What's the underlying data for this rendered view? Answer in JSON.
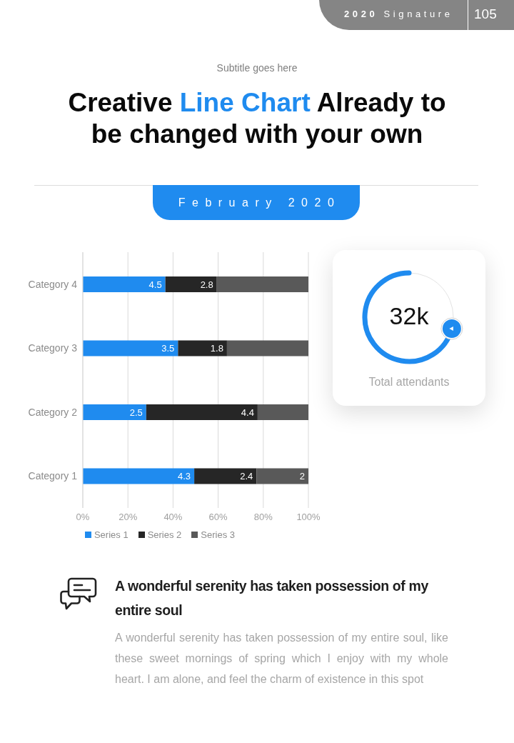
{
  "chart_data": {
    "type": "bar",
    "orientation": "horizontal",
    "stacked": true,
    "title": "Creative Line Chart Already to be changed with your own",
    "subtitle": "Subtitle goes here",
    "categories": [
      "Category 4",
      "Category 3",
      "Category 2",
      "Category 1"
    ],
    "series": [
      {
        "name": "Series 1",
        "color": "#1f8bef",
        "values": [
          36.6,
          42.2,
          28.1,
          49.4
        ]
      },
      {
        "name": "Series 2",
        "color": "#262626",
        "values": [
          22.8,
          21.7,
          49.4,
          27.6
        ]
      },
      {
        "name": "Series 3",
        "color": "#595959",
        "values": [
          40.6,
          36.1,
          22.5,
          23.0
        ]
      }
    ],
    "xlim": [
      0,
      100
    ],
    "xticks": [
      {
        "value": 0,
        "label": "0%"
      },
      {
        "value": 20,
        "label": "20%"
      },
      {
        "value": 40,
        "label": "40%"
      },
      {
        "value": 60,
        "label": "60%"
      },
      {
        "value": 80,
        "label": "80%"
      },
      {
        "value": 100,
        "label": "100%"
      }
    ],
    "grid": "x",
    "legend": "bottom",
    "annotations": [
      "2020 Signature",
      "105",
      "February 2020",
      "32k",
      "Total attendants",
      "A wonderful serenity has taken possession of my entire soul",
      "A wonderful serenity has taken possession of my entire soul, like these sweet mornings of spring which I enjoy with my whole heart. I am alone, and feel the charm of existence in this spot",
      {
        "text": "4.5",
        "x": 36.6,
        "y": "Category 4"
      },
      {
        "text": "2.8",
        "x": 59.4,
        "y": "Category 4"
      },
      {
        "text": "3.5",
        "x": 42.2,
        "y": "Category 3"
      },
      {
        "text": "1.8",
        "x": 63.9,
        "y": "Category 3"
      },
      {
        "text": "2.5",
        "x": 28.1,
        "y": "Category 2"
      },
      {
        "text": "4.4",
        "x": 77.5,
        "y": "Category 2"
      },
      {
        "text": "4.3",
        "x": 49.4,
        "y": "Category 1"
      },
      {
        "text": "2.4",
        "x": 77,
        "y": "Category 1"
      },
      {
        "text": "2",
        "x": 100,
        "y": "Category 1"
      }
    ]
  }
}
